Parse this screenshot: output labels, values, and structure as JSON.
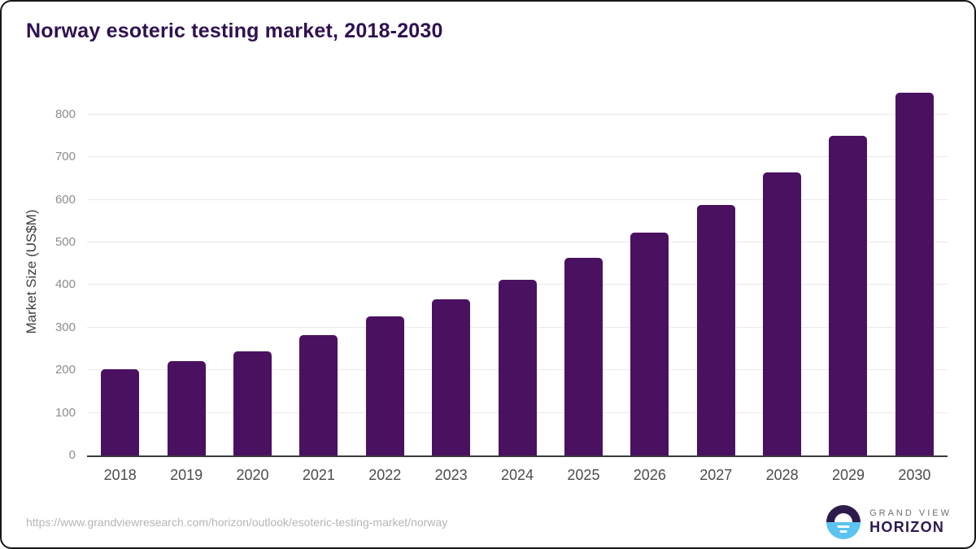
{
  "chart_data": {
    "type": "bar",
    "title": "Norway esoteric testing market, 2018-2030",
    "categories": [
      "2018",
      "2019",
      "2020",
      "2021",
      "2022",
      "2023",
      "2024",
      "2025",
      "2026",
      "2027",
      "2028",
      "2029",
      "2030"
    ],
    "values": [
      203,
      222,
      245,
      283,
      326,
      366,
      412,
      464,
      523,
      588,
      664,
      750,
      851
    ],
    "xlabel": "",
    "ylabel": "Market Size (US$M)",
    "ylim": [
      0,
      860
    ],
    "yticks": [
      0,
      100,
      200,
      300,
      400,
      500,
      600,
      700,
      800
    ],
    "grid": true,
    "legend": "none",
    "bar_color": "#4A1160"
  },
  "colors": {
    "title": "#2F1152",
    "bar": "#4A1160",
    "gridline": "#E9E9EA",
    "axis_line": "#3A3A3D",
    "tick_label": "#8D8D90",
    "logo_dark_purple": "#2D1B4B",
    "logo_light_blue": "#5CC3F0"
  },
  "footer": {
    "source_url": "https://www.grandviewresearch.com/horizon/outlook/esoteric-testing-market/norway",
    "logo_top": "GRAND VIEW",
    "logo_bottom": "HORIZON"
  }
}
